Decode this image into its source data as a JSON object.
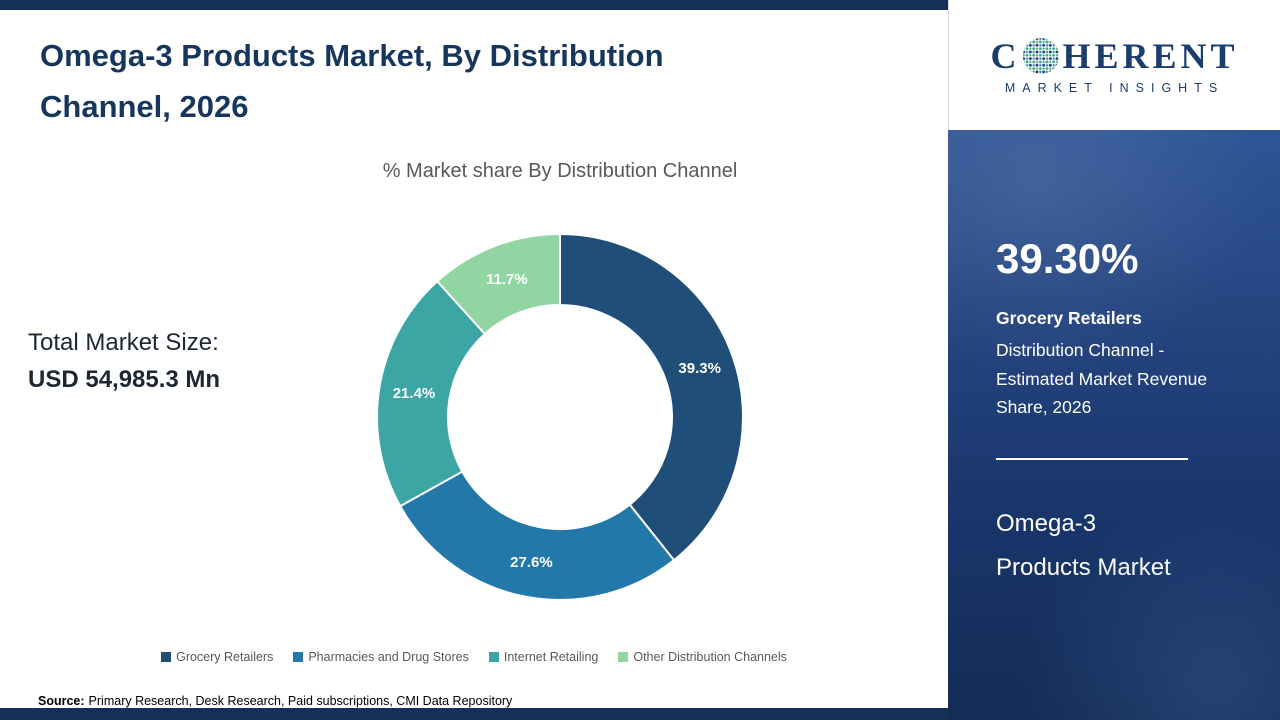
{
  "header": {
    "title_line1": "Omega-3 Products Market, By Distribution",
    "title_line2": "Channel, 2026"
  },
  "logo": {
    "prefix": "C",
    "suffix": "HERENT",
    "subtitle": "MARKET INSIGHTS",
    "brand_color": "#1c3e6e"
  },
  "main": {
    "total_market_label": "Total Market Size:",
    "total_market_value": "USD 54,985.3 Mn"
  },
  "chart_data": {
    "type": "pie",
    "donut": true,
    "title": "% Market share By Distribution Channel",
    "categories": [
      "Grocery Retailers",
      "Pharmacies and Drug Stores",
      "Internet Retailing",
      "Other Distribution Channels"
    ],
    "values": [
      39.3,
      27.6,
      21.4,
      11.7
    ],
    "slice_labels": [
      "39.3%",
      "27.6%",
      "21.4%",
      "11.7%"
    ],
    "colors": [
      "#1f4e79",
      "#2278a8",
      "#3ba6a4",
      "#90d5a2"
    ],
    "legend_position": "bottom",
    "start_angle_deg": 0,
    "direction": "clockwise"
  },
  "sidebar": {
    "stat_value": "39.30%",
    "stat_category": "Grocery Retailers",
    "stat_description": "Distribution Channel - Estimated Market Revenue Share, 2026",
    "product_line1": "Omega-3",
    "product_line2": "Products Market"
  },
  "footer": {
    "source_label": "Source:",
    "source_text": "Primary Research, Desk Research, Paid subscriptions, CMI Data Repository"
  }
}
